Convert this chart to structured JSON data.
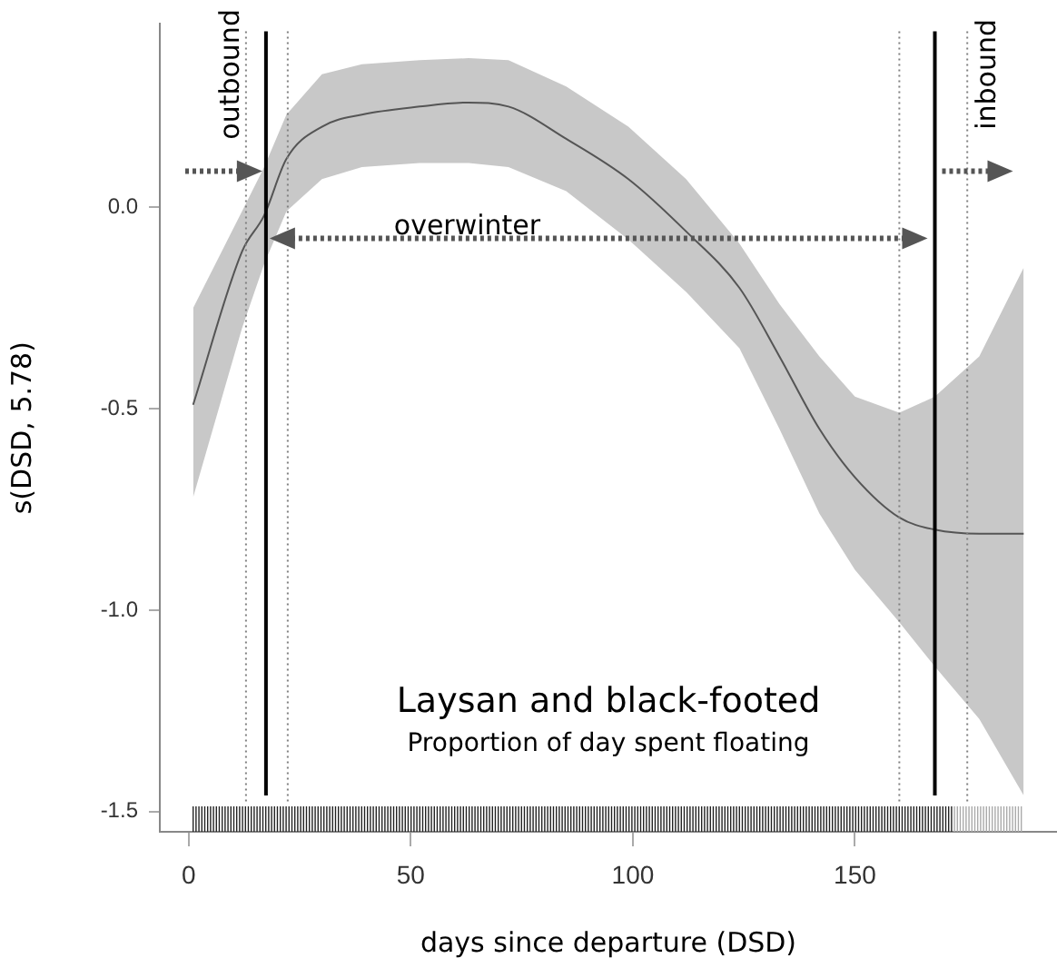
{
  "chart_data": {
    "type": "line",
    "title": "Laysan and black-footed",
    "subtitle": "Proportion of day spent floating",
    "xlabel": "days since departure (DSD)",
    "ylabel": "s(DSD, 5.78)",
    "x": [
      1,
      12,
      17,
      22,
      30,
      39,
      52,
      63,
      72,
      85,
      99,
      112,
      124,
      133,
      142,
      150,
      160,
      168,
      178,
      188
    ],
    "series": [
      {
        "color": "#555555",
        "values": [
          -0.49,
          -0.11,
          -0.02,
          0.12,
          0.2,
          0.23,
          0.25,
          0.26,
          0.25,
          0.17,
          0.07,
          -0.06,
          -0.2,
          -0.37,
          -0.55,
          -0.67,
          -0.77,
          -0.8,
          -0.81,
          -0.81
        ],
        "lower": [
          -0.72,
          -0.3,
          -0.14,
          -0.01,
          0.07,
          0.1,
          0.11,
          0.11,
          0.1,
          0.04,
          -0.08,
          -0.21,
          -0.35,
          -0.55,
          -0.76,
          -0.9,
          -1.03,
          -1.14,
          -1.27,
          -1.46
        ],
        "upper": [
          -0.25,
          -0.01,
          0.1,
          0.23,
          0.33,
          0.355,
          0.365,
          0.37,
          0.365,
          0.3,
          0.2,
          0.07,
          -0.09,
          -0.24,
          -0.37,
          -0.47,
          -0.51,
          -0.47,
          -0.37,
          -0.15
        ]
      }
    ],
    "xlim": [
      -6.5,
      195.5
    ],
    "xticks": [
      0,
      50,
      100,
      150
    ],
    "ylim": [
      -1.55,
      0.455
    ],
    "yticks": [
      -1.5,
      {
        "value": -1,
        "label": "-1.0"
      },
      -0.5,
      {
        "value": 0,
        "label": "0.0"
      }
    ],
    "ref_lines": [
      {
        "axis": "x",
        "value": 12.9,
        "color": "#808080",
        "line_style": "dotted"
      },
      {
        "axis": "x",
        "value": 17.4,
        "color": "#000000",
        "line_style": "solid"
      },
      {
        "axis": "x",
        "value": 22.3,
        "color": "#808080",
        "line_style": "dotted"
      },
      {
        "axis": "x",
        "value": 160,
        "color": "#808080",
        "line_style": "dotted"
      },
      {
        "axis": "x",
        "value": 168,
        "color": "#000000",
        "line_style": "solid"
      },
      {
        "axis": "x",
        "value": 175.3,
        "color": "#808080",
        "line_style": "dotted"
      }
    ],
    "annotations": [
      "outbound",
      "overwinter",
      "inbound"
    ],
    "grid": false,
    "legend": false,
    "marker": "none",
    "line_style": "solid"
  }
}
